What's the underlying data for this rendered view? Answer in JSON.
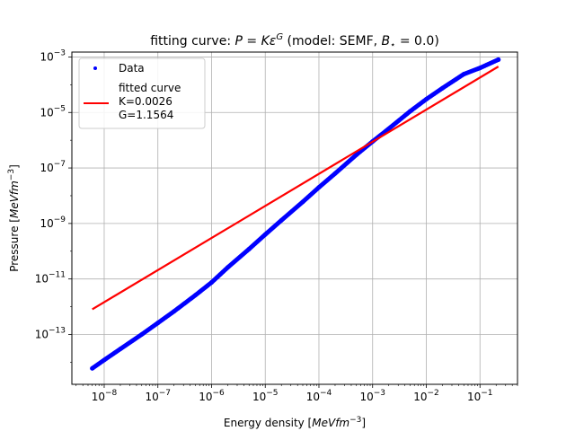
{
  "chart_data": {
    "type": "scatter",
    "title": "fitting curve: P = Kε^G (model: SEMF, B⁎ = 0.0)",
    "title_parts": {
      "prefix": "fitting curve: ",
      "P": "P",
      "eq": " = ",
      "K": "K",
      "eps": "ε",
      "G": "G",
      "mid": " (model: SEMF, ",
      "B": "B",
      "star": "⋆",
      "suffix": " = 0.0)"
    },
    "xlabel": "Energy density [MeV fm⁻³]",
    "xlabel_parts": {
      "text": "Energy density [",
      "unit": "MeVfm",
      "exp": "−3",
      "close": "]"
    },
    "ylabel": "Pressure [MeV fm⁻³]",
    "ylabel_parts": {
      "text": "Pressure [",
      "unit": "MeVfm",
      "exp": "−3",
      "close": "]"
    },
    "xscale": "log",
    "yscale": "log",
    "xlim": [
      2.5e-09,
      0.5
    ],
    "ylim": [
      1.6e-15,
      0.0015
    ],
    "grid": true,
    "legend_placement": "upper-left",
    "x_ticks": [
      {
        "value": 1e-08,
        "label": "10",
        "exp": "−8"
      },
      {
        "value": 1e-07,
        "label": "10",
        "exp": "−7"
      },
      {
        "value": 1e-06,
        "label": "10",
        "exp": "−6"
      },
      {
        "value": 1e-05,
        "label": "10",
        "exp": "−5"
      },
      {
        "value": 0.0001,
        "label": "10",
        "exp": "−4"
      },
      {
        "value": 0.001,
        "label": "10",
        "exp": "−3"
      },
      {
        "value": 0.01,
        "label": "10",
        "exp": "−2"
      },
      {
        "value": 0.1,
        "label": "10",
        "exp": "−1"
      }
    ],
    "y_ticks": [
      {
        "value": 1e-13,
        "label": "10",
        "exp": "−13"
      },
      {
        "value": 1e-11,
        "label": "10",
        "exp": "−11"
      },
      {
        "value": 1e-09,
        "label": "10",
        "exp": "−9"
      },
      {
        "value": 1e-07,
        "label": "10",
        "exp": "−7"
      },
      {
        "value": 1e-05,
        "label": "10",
        "exp": "−5"
      },
      {
        "value": 0.001,
        "label": "10",
        "exp": "−3"
      }
    ],
    "series": [
      {
        "name": "Data",
        "kind": "points",
        "color": "#0000ff",
        "x": [
          6e-09,
          1e-08,
          2e-08,
          5e-08,
          1e-07,
          2e-07,
          5e-07,
          1e-06,
          2e-06,
          5e-06,
          1e-05,
          2e-05,
          5e-05,
          0.0001,
          0.0002,
          0.0005,
          0.001,
          0.002,
          0.005,
          0.01,
          0.02,
          0.05,
          0.1,
          0.22
        ],
        "y": [
          6e-15,
          1.2e-14,
          3e-14,
          1e-13,
          2.6e-13,
          6.8e-13,
          2.6e-12,
          7.5e-12,
          2.6e-11,
          1.2e-10,
          4e-10,
          1.3e-09,
          6e-09,
          2e-08,
          6.3e-08,
          3e-07,
          9e-07,
          2.6e-06,
          1.1e-05,
          3e-05,
          7.5e-05,
          0.00024,
          0.0004,
          0.0008
        ]
      },
      {
        "name": "fitted curve\n K=0.0026\n G=1.1564",
        "name_lines": [
          "fitted curve",
          " K=0.0026",
          " G=1.1564"
        ],
        "kind": "line",
        "color": "#ff0000",
        "K": 0.0026,
        "G": 1.1564,
        "x_range": [
          6e-09,
          0.22
        ]
      }
    ]
  }
}
